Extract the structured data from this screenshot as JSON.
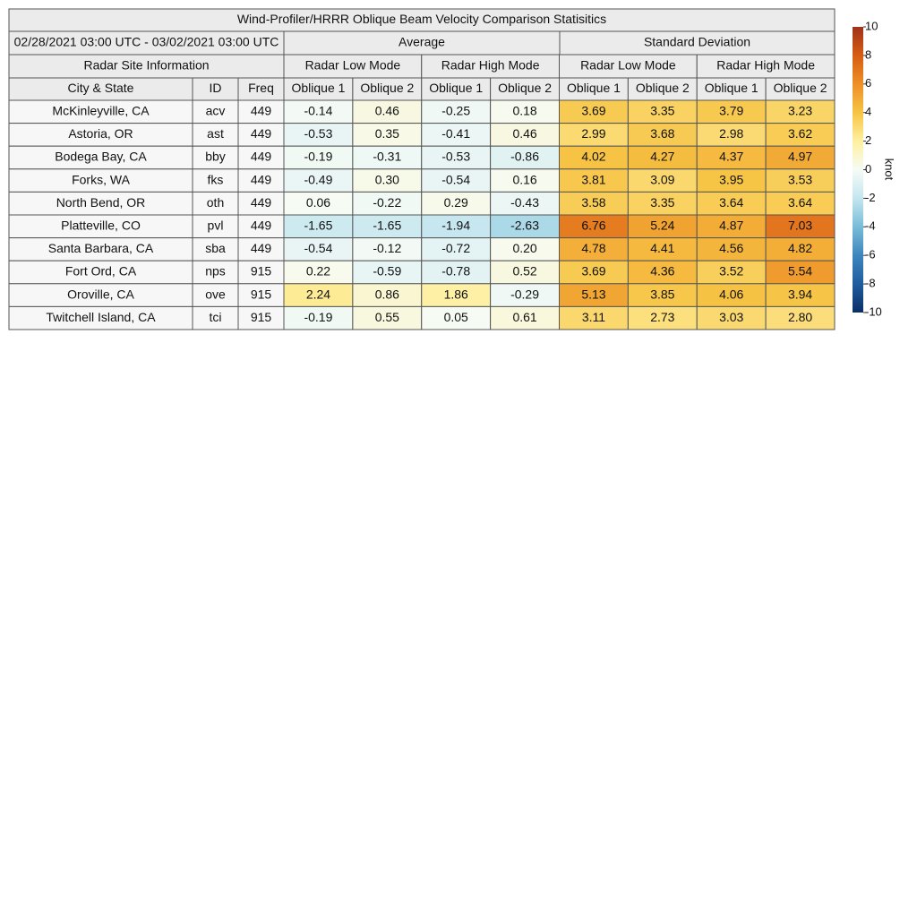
{
  "title": "Wind-Profiler/HRRR Oblique Beam Velocity Comparison Statisitics",
  "period": "02/28/2021 03:00 UTC - 03/02/2021 03:00 UTC",
  "group_headers": [
    "Average",
    "Standard Deviation"
  ],
  "site_header": "Radar Site Information",
  "mode_headers": [
    "Radar Low Mode",
    "Radar High Mode",
    "Radar Low Mode",
    "Radar High Mode"
  ],
  "columns": [
    "City & State",
    "ID",
    "Freq",
    "Oblique 1",
    "Oblique 2",
    "Oblique 1",
    "Oblique 2",
    "Oblique 1",
    "Oblique 2",
    "Oblique 1",
    "Oblique 2"
  ],
  "rows": [
    [
      "McKinleyville, CA",
      "acv",
      "449",
      "-0.14",
      "0.46",
      "-0.25",
      "0.18",
      "3.69",
      "3.35",
      "3.79",
      "3.23"
    ],
    [
      "Astoria, OR",
      "ast",
      "449",
      "-0.53",
      "0.35",
      "-0.41",
      "0.46",
      "2.99",
      "3.68",
      "2.98",
      "3.62"
    ],
    [
      "Bodega Bay, CA",
      "bby",
      "449",
      "-0.19",
      "-0.31",
      "-0.53",
      "-0.86",
      "4.02",
      "4.27",
      "4.37",
      "4.97"
    ],
    [
      "Forks, WA",
      "fks",
      "449",
      "-0.49",
      "0.30",
      "-0.54",
      "0.16",
      "3.81",
      "3.09",
      "3.95",
      "3.53"
    ],
    [
      "North Bend, OR",
      "oth",
      "449",
      "0.06",
      "-0.22",
      "0.29",
      "-0.43",
      "3.58",
      "3.35",
      "3.64",
      "3.64"
    ],
    [
      "Platteville, CO",
      "pvl",
      "449",
      "-1.65",
      "-1.65",
      "-1.94",
      "-2.63",
      "6.76",
      "5.24",
      "4.87",
      "7.03"
    ],
    [
      "Santa Barbara, CA",
      "sba",
      "449",
      "-0.54",
      "-0.12",
      "-0.72",
      "0.20",
      "4.78",
      "4.41",
      "4.56",
      "4.82"
    ],
    [
      "Fort Ord, CA",
      "nps",
      "915",
      "0.22",
      "-0.59",
      "-0.78",
      "0.52",
      "3.69",
      "4.36",
      "3.52",
      "5.54"
    ],
    [
      "Oroville, CA",
      "ove",
      "915",
      "2.24",
      "0.86",
      "1.86",
      "-0.29",
      "5.13",
      "3.85",
      "4.06",
      "3.94"
    ],
    [
      "Twitchell Island, CA",
      "tci",
      "915",
      "-0.19",
      "0.55",
      "0.05",
      "0.61",
      "3.11",
      "2.73",
      "3.03",
      "2.80"
    ]
  ],
  "colorbar": {
    "label": "knot",
    "lim": [
      -10,
      10
    ],
    "ticks": [
      -10,
      -8,
      -6,
      -4,
      -2,
      0,
      2,
      4,
      6,
      8,
      10
    ],
    "colors": [
      "#0a2f66",
      "#1f5d9e",
      "#3d86bd",
      "#79bcd8",
      "#c4e6f0",
      "#f6fbf6",
      "#fff0a0",
      "#f6c444",
      "#ee8f27",
      "#d65d13",
      "#9f321a"
    ]
  }
}
